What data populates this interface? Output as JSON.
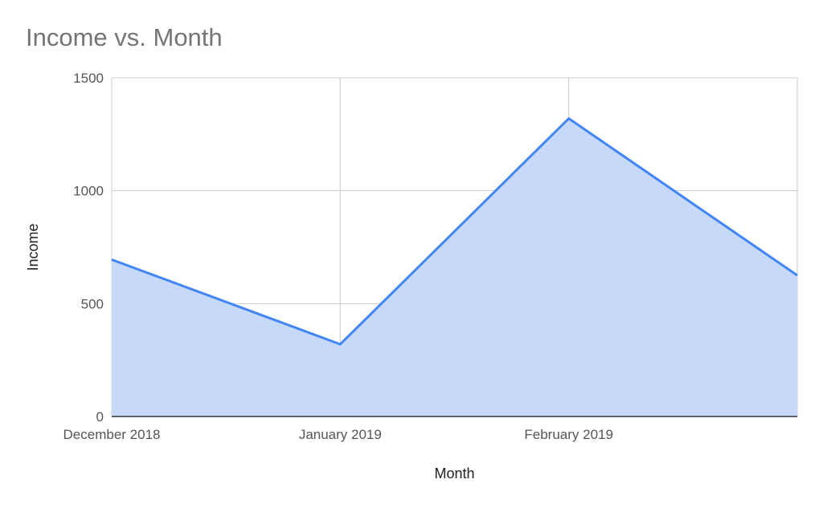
{
  "chart_data": {
    "type": "area",
    "title": "Income vs. Month",
    "xlabel": "Month",
    "ylabel": "Income",
    "x_tick_labels": [
      "December 2018",
      "January 2019",
      "February 2019"
    ],
    "y_tick_labels": [
      "0",
      "500",
      "1000",
      "1500"
    ],
    "ylim": [
      0,
      1500
    ],
    "grid": true,
    "legend": "none",
    "series": [
      {
        "x": [
          "2018-12-01",
          "2019-01-01",
          "2019-02-01",
          "2019-03-01"
        ],
        "values": [
          695,
          320,
          1320,
          625
        ]
      }
    ],
    "colors": {
      "line": "#4285f4",
      "fill": "#c6d9f9",
      "grid": "#cccccc",
      "axis": "#333333",
      "title": "#757575",
      "tick": "#555555",
      "axis_label": "#222222"
    }
  }
}
